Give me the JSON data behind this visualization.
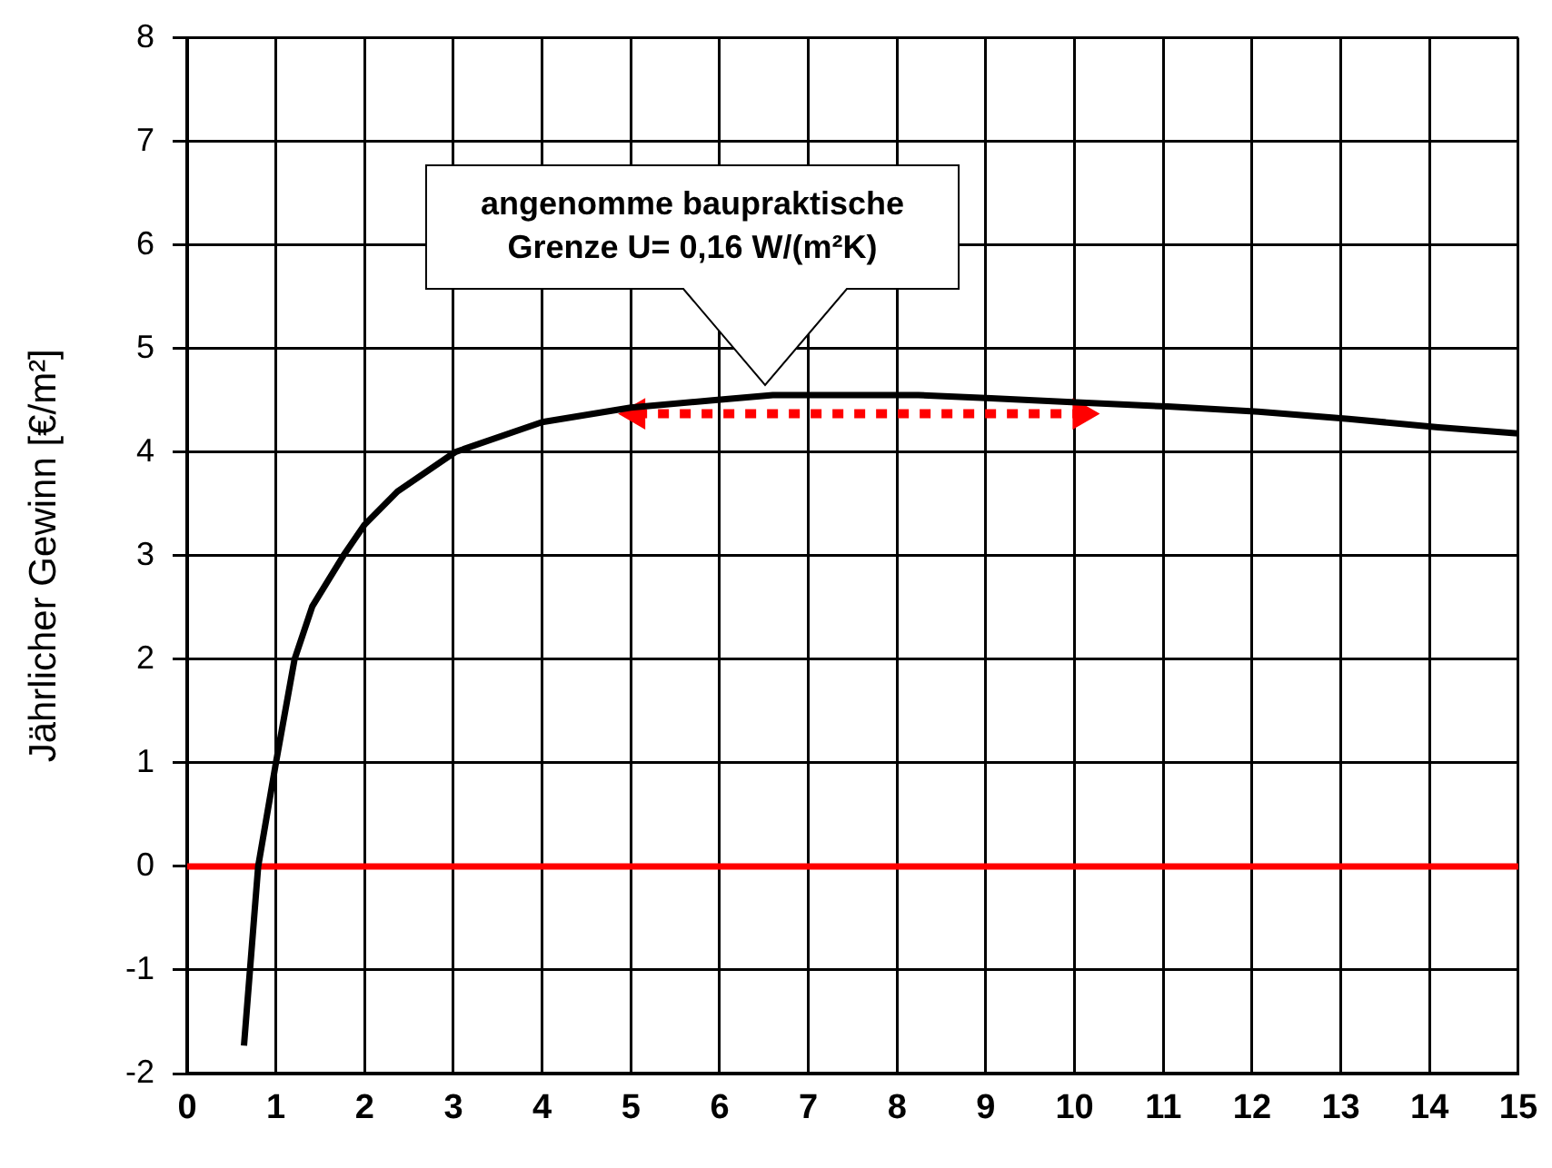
{
  "chart_data": {
    "type": "line",
    "ylabel": "Jährlicher Gewinn [€/m²]",
    "xlim": [
      0,
      15
    ],
    "xticks": [
      0,
      1,
      2,
      3,
      4,
      5,
      6,
      7,
      8,
      9,
      10,
      11,
      12,
      13,
      14,
      15
    ],
    "ylim": [
      -2,
      8
    ],
    "yticks": [
      -2,
      -1,
      0,
      1,
      2,
      3,
      4,
      5,
      6,
      7,
      8
    ],
    "grid": true,
    "legend": false,
    "marker": "none",
    "series": [
      {
        "color": "#000000",
        "line_style": "solid",
        "x": [
          0.64,
          0.8,
          1.0,
          1.21,
          1.41,
          1.76,
          2.0,
          2.37,
          3.02,
          4.0,
          5.0,
          5.92,
          6.6,
          8.24,
          9.06,
          10.02,
          11.05,
          12.07,
          13.09,
          14.1,
          15.0
        ],
        "values": [
          -1.73,
          0,
          1,
          2,
          2.51,
          3,
          3.3,
          3.62,
          4,
          4.29,
          4.43,
          4.5,
          4.55,
          4.55,
          4.52,
          4.48,
          4.44,
          4.39,
          4.32,
          4.24,
          4.18
        ]
      },
      {
        "type": "line",
        "color": "#ff0000",
        "line_style": "dotted",
        "marker": "triangle",
        "x": [
          5.06,
          10.08
        ],
        "values": [
          4.37,
          4.37
        ]
      }
    ],
    "ref_lines": [
      {
        "axis": "y",
        "value": 0,
        "color": "#ff0000",
        "line_style": "solid"
      }
    ],
    "annotations": [
      "angenomme baupraktische Grenze U= 0,16 W/(m²K)"
    ]
  }
}
